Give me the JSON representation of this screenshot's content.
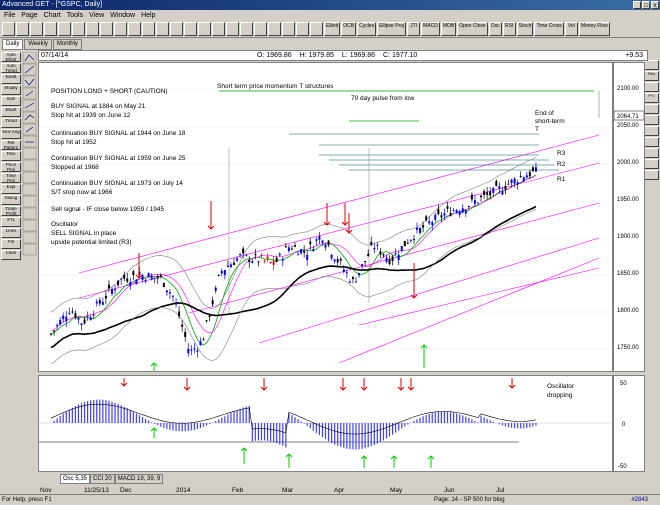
{
  "window": {
    "title": "Advanced GET - [^GSPC, Daily]",
    "min": "_",
    "max": "□",
    "close": "x"
  },
  "menu": [
    "File",
    "Page",
    "Chart",
    "Tools",
    "View",
    "Window",
    "Help"
  ],
  "toolbar": [
    "",
    "",
    "",
    "",
    "",
    "",
    "",
    "",
    "",
    "",
    "",
    "",
    "",
    "",
    "",
    "",
    "",
    "",
    "",
    "",
    "",
    "",
    "",
    "Elliott",
    "OCB",
    "Cycles",
    "Ellipse Proj",
    "JTI",
    "MACD",
    "MOB",
    "Open Close",
    "Osc",
    "RSI",
    "Stoch",
    "Time Cross",
    "Vol",
    "Money Flow"
  ],
  "view_tabs": [
    "Daily",
    "Weekly",
    "Monthly"
  ],
  "ohlc": {
    "date": "07/14/14",
    "O": "1969.86",
    "H": "1979.85",
    "L": "1969.86",
    "C": "1977.10",
    "change": "+9.53"
  },
  "left_tools": [
    "Auto Elliott",
    "Auto Trend",
    "Elliott",
    "Modify",
    "Edit",
    "Elliott",
    "Trend",
    "Mov Avg",
    "Ret Pattern",
    "Fibo",
    "Price Proj",
    "Time Proj",
    "Expl",
    "Swing",
    "Trade Profit",
    "XTL",
    "Lines",
    "Fill",
    "Clear"
  ],
  "right_tools": [
    "",
    "Fibo",
    "",
    "PTI",
    "",
    "",
    "",
    "",
    "",
    "",
    ""
  ],
  "annotations": {
    "position": "POSITION LONG + SHORT (CAUTION)",
    "buy1": "BUY SIGNAL at 1884 on May 21",
    "buy1b": "Stop hit at 1939 on June 12",
    "cont1": "Continuation BUY SIGNAL at 1944 on June 18",
    "cont1b": "Stop hit at 1952",
    "cont2": "Continuation BUY SIGNAL at 1959 on June 25",
    "cont2b": "Stopped at 1968",
    "cont3": "Continuation BUY SIGNAL at 1973 on July 14",
    "cont3b": "S/T stop now at 1966",
    "sell": "Sell signal - IF close below 1959 / 1945",
    "osc1": "Oscillator",
    "osc2": "SELL SIGNAL in place",
    "osc3": "upside potential limited (R3)",
    "stpm": "Short term price momentum T structures",
    "pulse": "70 day pulse from low",
    "eos1": "End of",
    "eos2": "short-term",
    "eos3": "T",
    "r3": "R3",
    "r2": "R2",
    "r1": "R1",
    "osc_drop1": "Oscillator",
    "osc_drop2": "dropping"
  },
  "price_axis": [
    "2100.00",
    "2064.71",
    "2050.00",
    "2000.00",
    "1950.00",
    "1900.00",
    "1850.00",
    "1800.00",
    "1750.00"
  ],
  "osc_axis": [
    "50",
    "0",
    "-50"
  ],
  "bottom_tabs": [
    "Osc 5,35",
    "CCI 20",
    "MACD 19, 39, 9"
  ],
  "time_axis": [
    "Nov",
    "11/25/13",
    "Dec",
    "2014",
    "Feb",
    "Mar",
    "Apr",
    "May",
    "Jun",
    "Jul"
  ],
  "status": {
    "left": "For Help, press F1",
    "mid": "Page: 14 - SP 500 for blog",
    "right": "#2843"
  },
  "colors": {
    "up_bar": "#0000ff",
    "down_bar": "#ff0000",
    "buy_arrow": "#00cc00",
    "sell_arrow": "#dd0000",
    "sma_black": "#000000",
    "trend_magenta": "#ff00ff",
    "osc_bar": "#4040ff"
  }
}
